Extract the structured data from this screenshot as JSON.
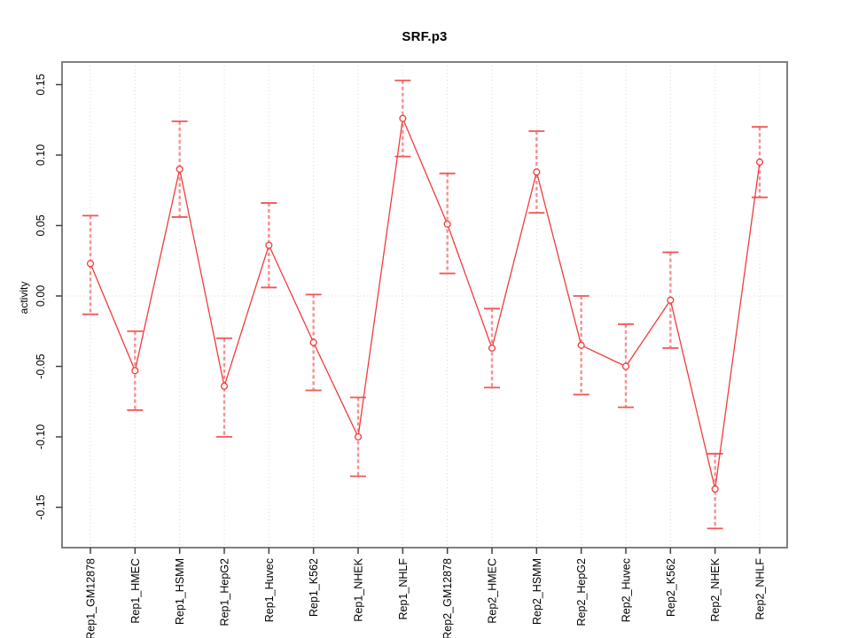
{
  "chart_data": {
    "type": "line",
    "title": "SRF.p3",
    "ylabel": "activity",
    "xlabel": "",
    "ylim": [
      -0.166,
      0.166
    ],
    "yticks": [
      0.15,
      0.1,
      0.05,
      0.0,
      -0.05,
      -0.1,
      -0.15
    ],
    "grid": {
      "vertical": "dotted at every category",
      "horizontal_zero_line": "dotted at y=0"
    },
    "legend_position": "none",
    "categories": [
      "Rep1_GM12878",
      "Rep1_HMEC",
      "Rep1_HSMM",
      "Rep1_HepG2",
      "Rep1_Huvec",
      "Rep1_K562",
      "Rep1_NHEK",
      "Rep1_NHLF",
      "Rep2_GM12878",
      "Rep2_HMEC",
      "Rep2_HSMM",
      "Rep2_HepG2",
      "Rep2_Huvec",
      "Rep2_K562",
      "Rep2_NHEK",
      "Rep2_NHLF"
    ],
    "series": [
      {
        "name": "activity",
        "values": [
          0.023,
          -0.053,
          0.09,
          -0.064,
          0.036,
          -0.033,
          -0.1,
          0.126,
          0.051,
          -0.037,
          0.088,
          -0.035,
          -0.05,
          -0.003,
          -0.137,
          0.095
        ],
        "error_upper": [
          0.057,
          -0.025,
          0.124,
          -0.03,
          0.066,
          0.001,
          -0.072,
          0.153,
          0.087,
          -0.009,
          0.117,
          0.0,
          -0.02,
          0.031,
          -0.112,
          0.12
        ],
        "error_lower": [
          -0.013,
          -0.081,
          0.056,
          -0.1,
          0.006,
          -0.067,
          -0.128,
          0.099,
          0.016,
          -0.065,
          0.059,
          -0.07,
          -0.079,
          -0.037,
          -0.165,
          0.07
        ]
      }
    ],
    "colors": {
      "line": "#f23b3b",
      "marker": "#f23b3b",
      "error_stem": "#f79090",
      "error_cap": "#f25555",
      "grid": "#d9d9d9",
      "zero_line": "#d9d9d9",
      "box": "#808080",
      "tick": "#404040",
      "text": "#000000"
    }
  }
}
